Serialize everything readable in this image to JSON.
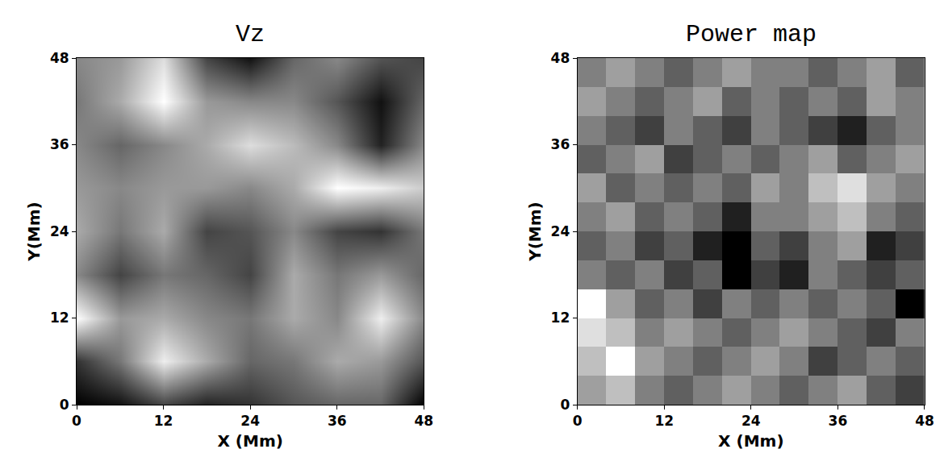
{
  "chart_data": [
    {
      "type": "heatmap",
      "title": "Vz",
      "xlabel": "X (Mm)",
      "ylabel": "Y(Mm)",
      "x": [
        0,
        6,
        12,
        18,
        24,
        30,
        36,
        42,
        48
      ],
      "y": [
        0,
        6,
        12,
        18,
        24,
        30,
        36,
        42,
        48
      ],
      "z": [
        [
          0.1,
          0.15,
          0.3,
          0.2,
          0.25,
          0.35,
          0.4,
          0.4,
          0.1
        ],
        [
          0.25,
          0.45,
          0.8,
          0.6,
          0.4,
          0.45,
          0.6,
          0.55,
          0.35
        ],
        [
          0.85,
          0.55,
          0.6,
          0.5,
          0.45,
          0.6,
          0.5,
          0.8,
          0.5
        ],
        [
          0.5,
          0.3,
          0.45,
          0.4,
          0.3,
          0.6,
          0.45,
          0.55,
          0.4
        ],
        [
          0.6,
          0.45,
          0.6,
          0.3,
          0.35,
          0.5,
          0.3,
          0.25,
          0.45
        ],
        [
          0.55,
          0.5,
          0.55,
          0.55,
          0.5,
          0.6,
          0.85,
          0.8,
          0.7
        ],
        [
          0.5,
          0.4,
          0.5,
          0.6,
          0.75,
          0.65,
          0.5,
          0.2,
          0.5
        ],
        [
          0.45,
          0.6,
          0.85,
          0.55,
          0.5,
          0.5,
          0.35,
          0.15,
          0.4
        ],
        [
          0.5,
          0.55,
          0.75,
          0.3,
          0.15,
          0.4,
          0.5,
          0.35,
          0.3
        ]
      ],
      "xlim": [
        0,
        48
      ],
      "ylim": [
        0,
        48
      ],
      "xticks": [
        0,
        12,
        24,
        36,
        48
      ],
      "yticks": [
        0,
        12,
        24,
        36,
        48
      ],
      "grid": false
    },
    {
      "type": "heatmap",
      "title": "Power map",
      "xlabel": "X (Mm)",
      "ylabel": "Y(Mm)",
      "x": [
        2,
        6,
        10,
        14,
        18,
        22,
        26,
        30,
        34,
        38,
        42,
        46
      ],
      "y": [
        2,
        6,
        10,
        14,
        18,
        22,
        26,
        30,
        34,
        38,
        42,
        46
      ],
      "z": [
        [
          0.55,
          0.6,
          0.5,
          0.45,
          0.5,
          0.55,
          0.5,
          0.45,
          0.5,
          0.55,
          0.45,
          0.4
        ],
        [
          0.6,
          0.7,
          0.55,
          0.5,
          0.45,
          0.5,
          0.55,
          0.5,
          0.4,
          0.45,
          0.5,
          0.45
        ],
        [
          0.65,
          0.6,
          0.5,
          0.55,
          0.5,
          0.45,
          0.5,
          0.55,
          0.5,
          0.45,
          0.4,
          0.5
        ],
        [
          0.7,
          0.55,
          0.45,
          0.5,
          0.4,
          0.5,
          0.45,
          0.5,
          0.45,
          0.5,
          0.45,
          0.3
        ],
        [
          0.5,
          0.45,
          0.5,
          0.4,
          0.45,
          0.3,
          0.4,
          0.35,
          0.5,
          0.45,
          0.4,
          0.45
        ],
        [
          0.45,
          0.5,
          0.4,
          0.45,
          0.35,
          0.3,
          0.45,
          0.4,
          0.5,
          0.55,
          0.35,
          0.4
        ],
        [
          0.5,
          0.55,
          0.45,
          0.5,
          0.45,
          0.35,
          0.5,
          0.5,
          0.55,
          0.6,
          0.5,
          0.45
        ],
        [
          0.55,
          0.45,
          0.5,
          0.45,
          0.5,
          0.45,
          0.55,
          0.5,
          0.6,
          0.65,
          0.55,
          0.5
        ],
        [
          0.45,
          0.5,
          0.55,
          0.4,
          0.45,
          0.5,
          0.45,
          0.5,
          0.55,
          0.45,
          0.5,
          0.55
        ],
        [
          0.5,
          0.45,
          0.4,
          0.5,
          0.45,
          0.4,
          0.5,
          0.45,
          0.4,
          0.35,
          0.45,
          0.5
        ],
        [
          0.55,
          0.5,
          0.45,
          0.5,
          0.55,
          0.45,
          0.5,
          0.45,
          0.5,
          0.45,
          0.55,
          0.5
        ],
        [
          0.5,
          0.55,
          0.5,
          0.45,
          0.5,
          0.55,
          0.5,
          0.5,
          0.45,
          0.5,
          0.55,
          0.45
        ]
      ],
      "xlim": [
        0,
        48
      ],
      "ylim": [
        0,
        48
      ],
      "xticks": [
        0,
        12,
        24,
        36,
        48
      ],
      "yticks": [
        0,
        12,
        24,
        36,
        48
      ],
      "grid": false
    }
  ]
}
